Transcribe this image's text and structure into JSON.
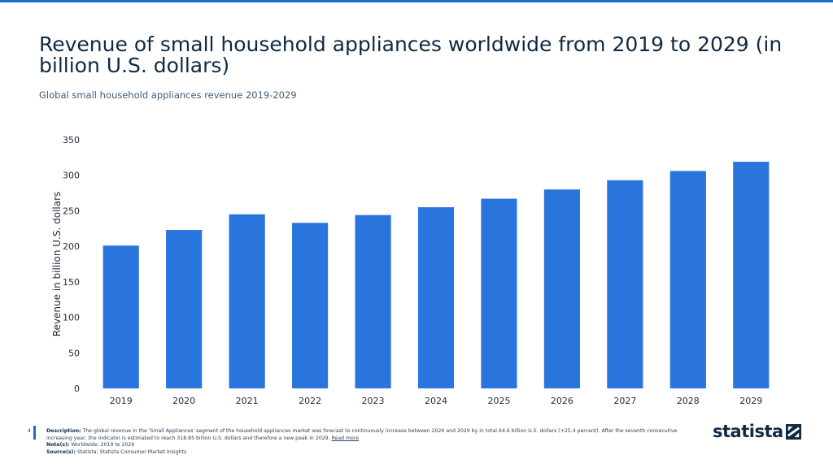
{
  "header": {
    "title": "Revenue of small household appliances worldwide from 2019 to 2029 (in billion U.S. dollars)",
    "subtitle": "Global small household appliances revenue 2019-2029"
  },
  "chart_data": {
    "type": "bar",
    "title": "Revenue of small household appliances worldwide from 2019 to 2029 (in billion U.S. dollars)",
    "xlabel": "",
    "ylabel": "Revenue in billion U.S. dollars",
    "categories": [
      "2019",
      "2020",
      "2021",
      "2022",
      "2023",
      "2024",
      "2025",
      "2026",
      "2027",
      "2028",
      "2029"
    ],
    "values": [
      201,
      223,
      245,
      233,
      244,
      255,
      267,
      280,
      293,
      306,
      319
    ],
    "ylim": [
      0,
      350
    ],
    "yticks": [
      0,
      50,
      100,
      150,
      200,
      250,
      300,
      350
    ],
    "bar_color": "#2a74de",
    "grid": false
  },
  "footer": {
    "page_number": "4",
    "description_label": "Description:",
    "description_text": "The global revenue in the 'Small Appliances' segment of the household appliances market was forecast to continuously increase between 2024 and 2029 by in total 64.6 billion U.S. dollars (+25.4 percent). After the seventh consecutive increasing year, the indicator is estimated to reach 318.85 billion U.S. dollars and therefore a new peak in 2029.",
    "read_more": "Read more",
    "notes_label": "Note(s):",
    "notes_text": "Worldwide; 2019 to 2029",
    "sources_label": "Source(s):",
    "sources_text": "Statista; Statista Consumer Market Insights"
  },
  "brand": {
    "logo_text": "statista",
    "accent_color": "#1c6cd2"
  }
}
